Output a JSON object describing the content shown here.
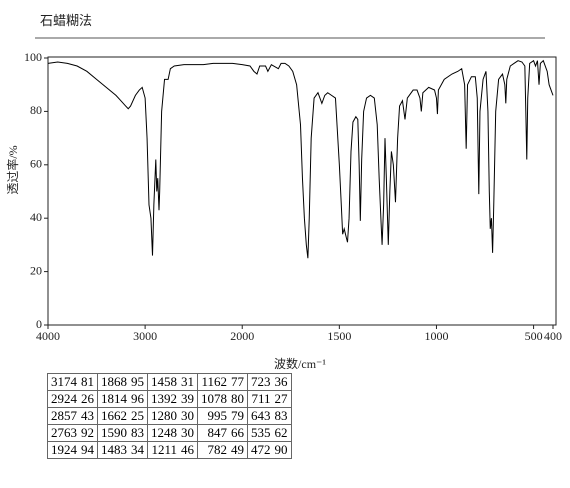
{
  "chart_data": {
    "type": "line",
    "title": "石蜡糊法",
    "xlabel": "波数/cm⁻¹",
    "ylabel": "透过率/%",
    "xlim": [
      4000,
      400
    ],
    "x_scale_break": 2000,
    "xticks": [
      4000,
      3000,
      2000,
      1500,
      1000,
      500,
      400
    ],
    "ylim": [
      0,
      100
    ],
    "yticks": [
      0,
      20,
      40,
      60,
      80,
      100
    ],
    "color": "#000000",
    "x": [
      4000,
      3900,
      3800,
      3700,
      3600,
      3500,
      3400,
      3300,
      3250,
      3200,
      3174,
      3150,
      3100,
      3060,
      3030,
      3000,
      2980,
      2960,
      2940,
      2924,
      2910,
      2890,
      2880,
      2870,
      2857,
      2850,
      2830,
      2800,
      2763,
      2740,
      2700,
      2600,
      2500,
      2400,
      2300,
      2200,
      2100,
      2000,
      1960,
      1940,
      1924,
      1910,
      1880,
      1868,
      1850,
      1814,
      1800,
      1780,
      1760,
      1740,
      1720,
      1700,
      1690,
      1680,
      1670,
      1662,
      1655,
      1645,
      1630,
      1610,
      1590,
      1575,
      1560,
      1540,
      1520,
      1500,
      1490,
      1483,
      1475,
      1465,
      1458,
      1450,
      1440,
      1430,
      1415,
      1405,
      1398,
      1392,
      1385,
      1375,
      1360,
      1340,
      1320,
      1305,
      1295,
      1285,
      1280,
      1272,
      1265,
      1258,
      1248,
      1240,
      1232,
      1222,
      1211,
      1200,
      1190,
      1175,
      1162,
      1150,
      1120,
      1100,
      1085,
      1078,
      1070,
      1040,
      1010,
      1000,
      995,
      990,
      960,
      920,
      890,
      870,
      855,
      847,
      840,
      820,
      800,
      790,
      782,
      776,
      760,
      745,
      735,
      728,
      723,
      717,
      711,
      705,
      695,
      680,
      660,
      648,
      643,
      638,
      620,
      600,
      580,
      560,
      545,
      540,
      535,
      530,
      520,
      500,
      490,
      480,
      472,
      465,
      450,
      430,
      420,
      410,
      400
    ],
    "values": [
      98,
      98.5,
      98,
      97,
      95,
      92,
      89,
      86,
      84,
      82,
      81,
      82,
      86,
      88,
      89,
      85,
      70,
      45,
      40,
      26,
      45,
      62,
      50,
      55,
      43,
      50,
      80,
      92,
      92,
      96,
      97,
      97.5,
      97.5,
      97.5,
      98,
      98,
      98,
      97.5,
      97,
      95,
      94,
      97,
      97,
      95,
      97.5,
      96,
      98,
      98,
      97,
      95,
      90,
      75,
      55,
      40,
      30,
      25,
      40,
      70,
      85,
      87,
      83,
      86,
      87,
      86,
      85,
      60,
      45,
      34,
      36,
      33,
      31,
      40,
      65,
      76,
      78,
      77,
      60,
      39,
      62,
      80,
      85,
      86,
      85,
      75,
      55,
      38,
      30,
      45,
      70,
      55,
      30,
      50,
      65,
      60,
      46,
      70,
      82,
      84,
      77,
      85,
      88,
      88,
      85,
      80,
      87,
      89,
      88,
      85,
      79,
      88,
      92,
      94,
      95,
      96,
      90,
      66,
      90,
      93,
      93,
      85,
      49,
      80,
      92,
      95,
      80,
      50,
      36,
      40,
      27,
      45,
      80,
      92,
      94,
      90,
      83,
      92,
      97,
      98,
      99,
      98.5,
      97,
      80,
      62,
      85,
      98,
      99,
      97,
      99,
      90,
      98,
      99,
      95,
      90,
      88,
      86
    ]
  },
  "peak_table": {
    "rows": [
      [
        [
          3174,
          81
        ],
        [
          1868,
          95
        ],
        [
          1458,
          31
        ],
        [
          1162,
          77
        ],
        [
          723,
          36
        ]
      ],
      [
        [
          2924,
          26
        ],
        [
          1814,
          96
        ],
        [
          1392,
          39
        ],
        [
          1078,
          80
        ],
        [
          711,
          27
        ]
      ],
      [
        [
          2857,
          43
        ],
        [
          1662,
          25
        ],
        [
          1280,
          30
        ],
        [
          995,
          79
        ],
        [
          643,
          83
        ]
      ],
      [
        [
          2763,
          92
        ],
        [
          1590,
          83
        ],
        [
          1248,
          30
        ],
        [
          847,
          66
        ],
        [
          535,
          62
        ]
      ],
      [
        [
          1924,
          94
        ],
        [
          1483,
          34
        ],
        [
          1211,
          46
        ],
        [
          782,
          49
        ],
        [
          472,
          90
        ]
      ]
    ]
  }
}
